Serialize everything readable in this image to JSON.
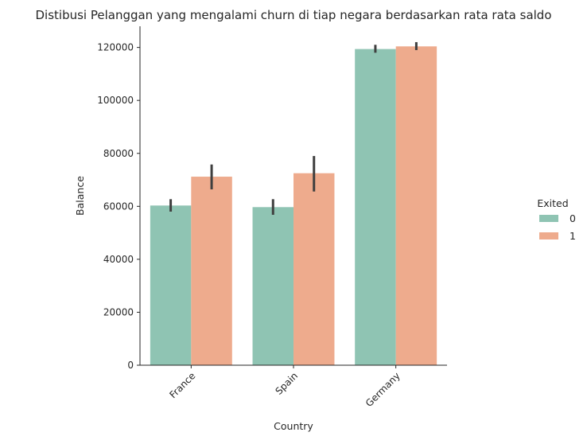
{
  "chart_data": {
    "type": "bar",
    "title": "Distibusi Pelanggan yang mengalami churn di tiap negara berdasarkan rata rata saldo",
    "xlabel": "Country",
    "ylabel": "Balance",
    "categories": [
      "France",
      "Spain",
      "Germany"
    ],
    "series": [
      {
        "name": "0",
        "color": "#8fc4b3",
        "values": [
          60300,
          59700,
          119400
        ],
        "ci_low": [
          58000,
          56800,
          118000
        ],
        "ci_high": [
          62700,
          62700,
          121000
        ]
      },
      {
        "name": "1",
        "color": "#eeab8d",
        "values": [
          71200,
          72500,
          120400
        ],
        "ci_low": [
          66400,
          65600,
          119000
        ],
        "ci_high": [
          75800,
          79000,
          122000
        ]
      }
    ],
    "yticks": [
      0,
      20000,
      40000,
      60000,
      80000,
      100000,
      120000
    ],
    "ylim": [
      0,
      128000
    ],
    "legend": {
      "title": "Exited",
      "placement": "right"
    },
    "grid": false
  }
}
